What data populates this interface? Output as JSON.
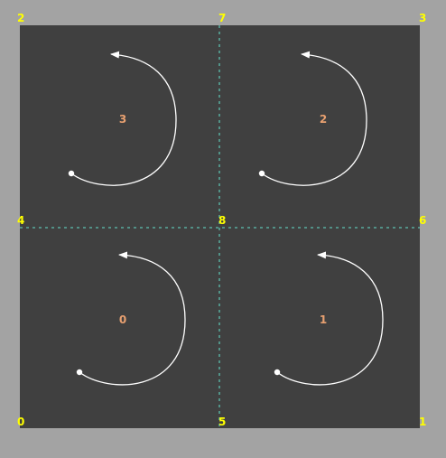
{
  "colors": {
    "background": "#a3a3a3",
    "panel": "#404040",
    "divider": "#5cc0b0",
    "vertex_label": "#ffff00",
    "cell_label": "#e8a070",
    "arc": "#ffffff"
  },
  "vertices": [
    "2",
    "7",
    "3",
    "4",
    "8",
    "6",
    "0",
    "5",
    "1"
  ],
  "cells": [
    "3",
    "2",
    "0",
    "1"
  ]
}
